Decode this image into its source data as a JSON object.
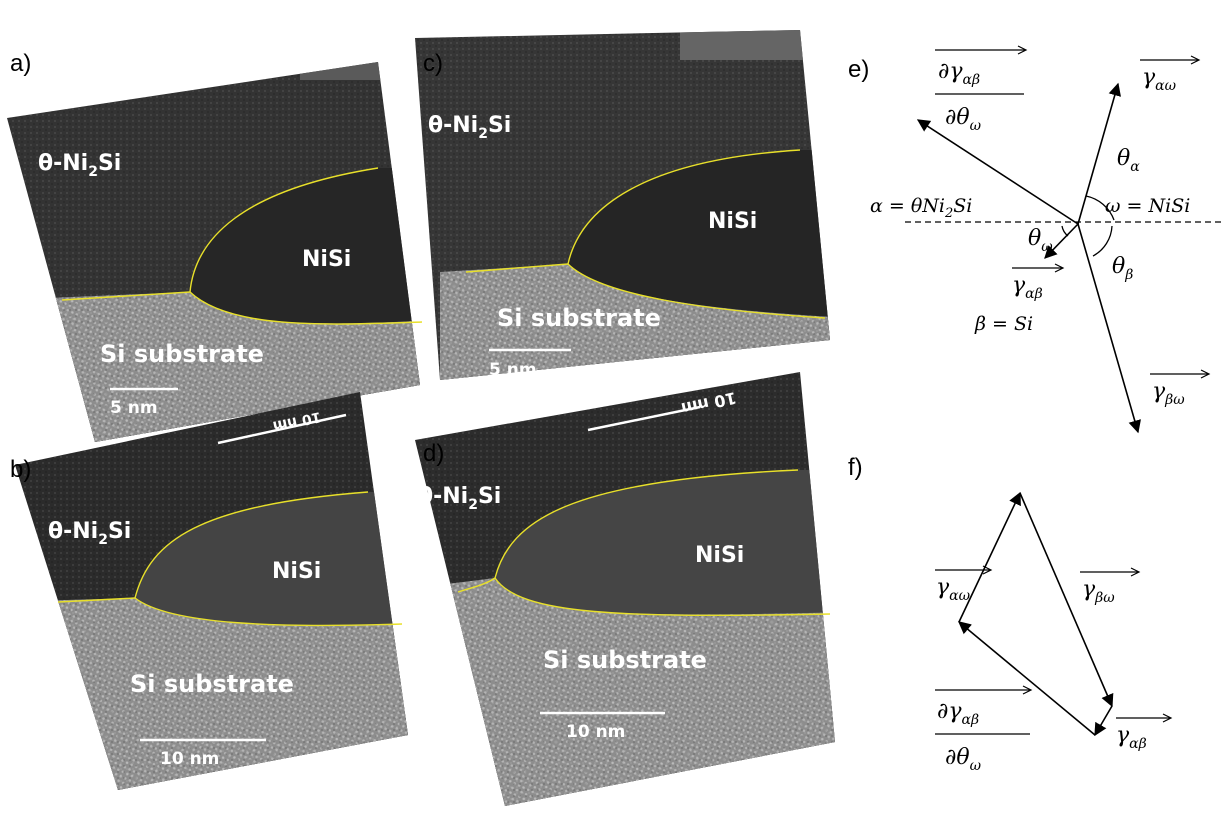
{
  "panels": {
    "a": {
      "label": "a)",
      "phase_theta": "θ-Ni",
      "sub2": "2",
      "si": "Si",
      "nisi": "NiSi",
      "substrate": "Si substrate",
      "scale": "5 nm"
    },
    "b": {
      "label": "b)",
      "phase_theta": "θ-Ni",
      "sub2": "2",
      "si": "Si",
      "nisi": "NiSi",
      "substrate": "Si substrate",
      "scale": "10 nm"
    },
    "c": {
      "label": "c)",
      "phase_theta": "θ-Ni",
      "sub2": "2",
      "si": "Si",
      "nisi": "NiSi",
      "substrate": "Si substrate",
      "scale": "5 nm"
    },
    "d": {
      "label": "d)",
      "phase_theta": "θ-Ni",
      "sub2": "2",
      "si": "Si",
      "nisi": "NiSi",
      "substrate": "Si substrate",
      "scale": "10 nm"
    },
    "e": {
      "label": "e)"
    },
    "f": {
      "label": "f)"
    }
  },
  "diagram_e": {
    "partial_num": "∂γ",
    "partial_den": "∂θ",
    "sub_ab": "αβ",
    "sub_w": "ω",
    "gamma": "γ",
    "sub_aw": "αω",
    "sub_bw": "βω",
    "theta": "θ",
    "alpha_sym": "α",
    "omega_sym": "ω",
    "beta_sym": "β",
    "alpha_def": "α = θNi",
    "alpha_def_tail": "Si",
    "sub2": "2",
    "omega_def": "ω = NiSi",
    "beta_def": "β = Si"
  },
  "colors": {
    "interface": "#e8e02a",
    "tem_dark": "#2e2e2e",
    "tem_light": "#8a8a8a"
  }
}
